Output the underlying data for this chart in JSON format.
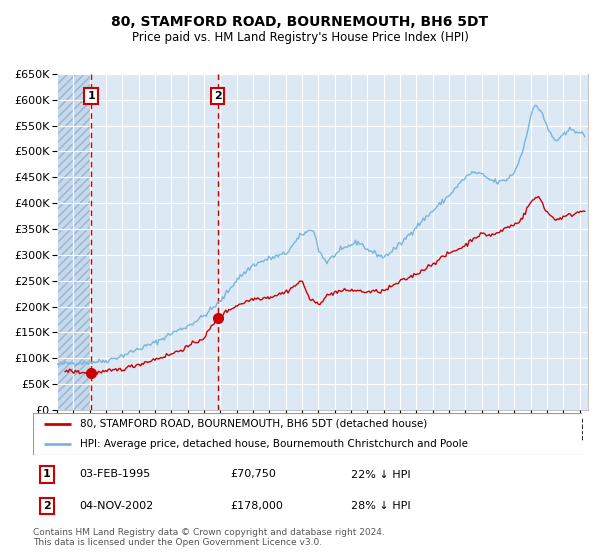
{
  "title": "80, STAMFORD ROAD, BOURNEMOUTH, BH6 5DT",
  "subtitle": "Price paid vs. HM Land Registry's House Price Index (HPI)",
  "legend_line1": "80, STAMFORD ROAD, BOURNEMOUTH, BH6 5DT (detached house)",
  "legend_line2": "HPI: Average price, detached house, Bournemouth Christchurch and Poole",
  "footnote": "Contains HM Land Registry data © Crown copyright and database right 2024.\nThis data is licensed under the Open Government Licence v3.0.",
  "sale1_date": "03-FEB-1995",
  "sale1_price": "£70,750",
  "sale1_hpi": "22% ↓ HPI",
  "sale2_date": "04-NOV-2002",
  "sale2_price": "£178,000",
  "sale2_hpi": "28% ↓ HPI",
  "sale1_x": 1995.09,
  "sale1_y": 70750,
  "sale2_x": 2002.84,
  "sale2_y": 178000,
  "vline1_x": 1995.09,
  "vline2_x": 2002.84,
  "hpi_color": "#7ab5d8",
  "price_color": "#cc0000",
  "sale_dot_color": "#cc0000",
  "bg_color": "#dce9f5",
  "grid_color": "#ffffff",
  "vline_color": "#cc0000",
  "ylim": [
    0,
    650000
  ],
  "xlim_start": 1993.0,
  "xlim_end": 2025.5,
  "hpi_anchors": [
    [
      1993.0,
      88000
    ],
    [
      1994.0,
      91000
    ],
    [
      1995.0,
      92000
    ],
    [
      1996.0,
      95000
    ],
    [
      1997.0,
      105000
    ],
    [
      1998.0,
      118000
    ],
    [
      1999.0,
      130000
    ],
    [
      2000.0,
      148000
    ],
    [
      2001.0,
      162000
    ],
    [
      2002.0,
      182000
    ],
    [
      2003.0,
      210000
    ],
    [
      2004.0,
      252000
    ],
    [
      2005.0,
      280000
    ],
    [
      2006.0,
      293000
    ],
    [
      2007.0,
      302000
    ],
    [
      2008.0,
      340000
    ],
    [
      2008.7,
      350000
    ],
    [
      2009.0,
      310000
    ],
    [
      2009.5,
      285000
    ],
    [
      2010.0,
      300000
    ],
    [
      2010.5,
      310000
    ],
    [
      2011.0,
      320000
    ],
    [
      2011.5,
      325000
    ],
    [
      2012.0,
      310000
    ],
    [
      2013.0,
      295000
    ],
    [
      2014.0,
      320000
    ],
    [
      2015.0,
      355000
    ],
    [
      2016.0,
      385000
    ],
    [
      2017.0,
      415000
    ],
    [
      2018.0,
      450000
    ],
    [
      2018.5,
      460000
    ],
    [
      2019.0,
      455000
    ],
    [
      2019.5,
      445000
    ],
    [
      2020.0,
      440000
    ],
    [
      2020.5,
      445000
    ],
    [
      2021.0,
      460000
    ],
    [
      2021.5,
      500000
    ],
    [
      2022.0,
      570000
    ],
    [
      2022.3,
      590000
    ],
    [
      2022.7,
      575000
    ],
    [
      2023.0,
      545000
    ],
    [
      2023.5,
      520000
    ],
    [
      2024.0,
      530000
    ],
    [
      2024.5,
      545000
    ],
    [
      2025.3,
      530000
    ]
  ],
  "price_anchors": [
    [
      1993.5,
      76000
    ],
    [
      1995.09,
      70750
    ],
    [
      1996.0,
      74000
    ],
    [
      1997.0,
      79000
    ],
    [
      1998.0,
      88000
    ],
    [
      1999.0,
      98000
    ],
    [
      2000.0,
      108000
    ],
    [
      2001.0,
      122000
    ],
    [
      2002.0,
      140000
    ],
    [
      2002.84,
      178000
    ],
    [
      2003.5,
      193000
    ],
    [
      2004.0,
      202000
    ],
    [
      2005.0,
      215000
    ],
    [
      2006.0,
      218000
    ],
    [
      2007.0,
      228000
    ],
    [
      2008.0,
      250000
    ],
    [
      2008.5,
      212000
    ],
    [
      2009.0,
      205000
    ],
    [
      2009.5,
      220000
    ],
    [
      2010.0,
      228000
    ],
    [
      2011.0,
      232000
    ],
    [
      2012.0,
      228000
    ],
    [
      2013.0,
      230000
    ],
    [
      2014.0,
      248000
    ],
    [
      2015.0,
      263000
    ],
    [
      2016.0,
      283000
    ],
    [
      2017.0,
      303000
    ],
    [
      2018.0,
      318000
    ],
    [
      2018.5,
      333000
    ],
    [
      2019.0,
      340000
    ],
    [
      2019.5,
      338000
    ],
    [
      2020.0,
      342000
    ],
    [
      2020.5,
      353000
    ],
    [
      2021.0,
      358000
    ],
    [
      2021.5,
      372000
    ],
    [
      2022.0,
      403000
    ],
    [
      2022.5,
      413000
    ],
    [
      2023.0,
      382000
    ],
    [
      2023.5,
      368000
    ],
    [
      2024.0,
      373000
    ],
    [
      2024.5,
      378000
    ],
    [
      2025.3,
      387000
    ]
  ]
}
